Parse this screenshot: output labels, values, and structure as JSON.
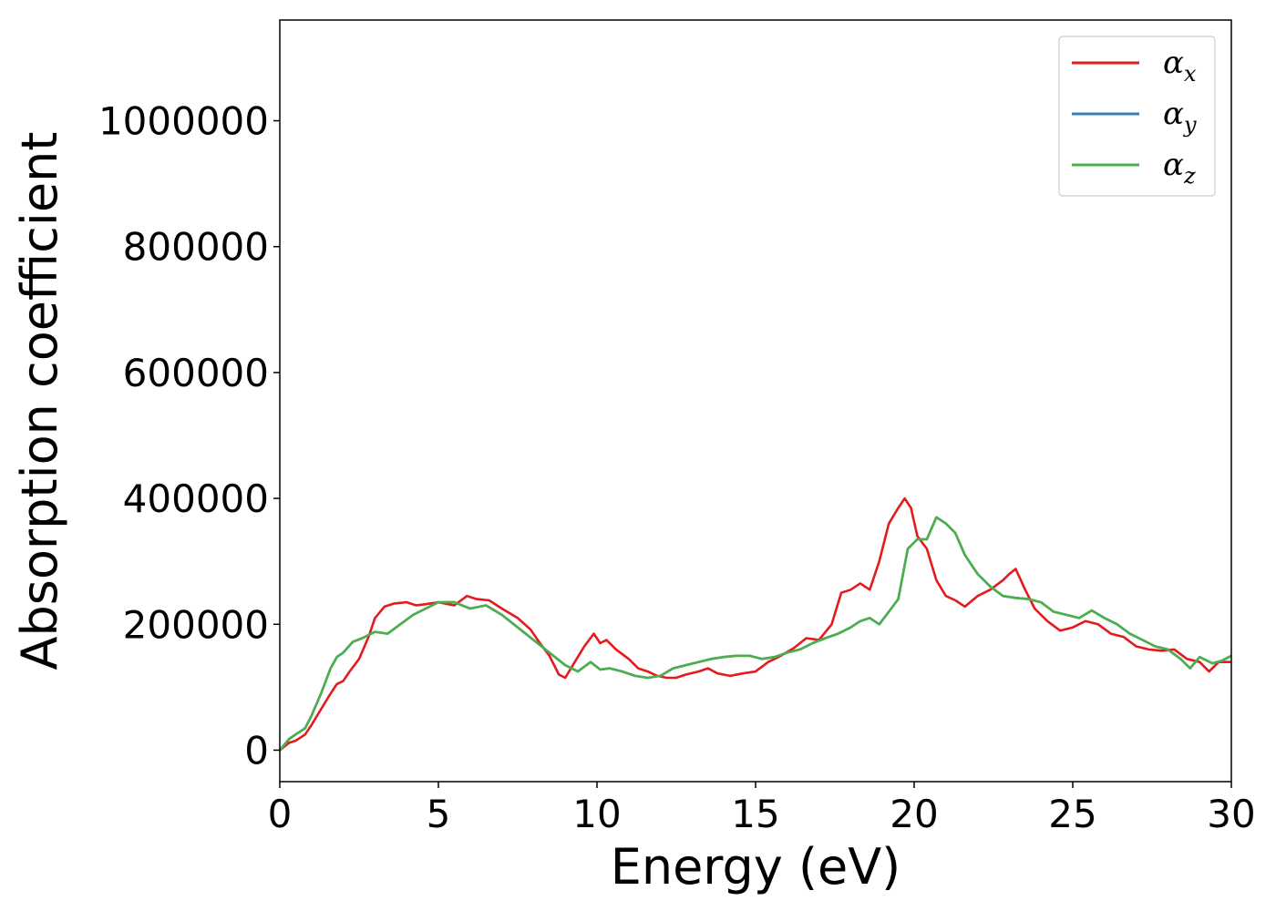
{
  "chart_data": {
    "type": "line",
    "title": "",
    "xlabel": "Energy (eV)",
    "ylabel": "Absorption coefficient",
    "xlim": [
      0,
      30
    ],
    "ylim": [
      -50000,
      1160000
    ],
    "xticks": [
      0,
      5,
      10,
      15,
      20,
      25,
      30
    ],
    "xtick_labels": [
      "0",
      "5",
      "10",
      "15",
      "20",
      "25",
      "30"
    ],
    "yticks": [
      0,
      200000,
      400000,
      600000,
      800000,
      1000000
    ],
    "ytick_labels": [
      "0",
      "200000",
      "400000",
      "600000",
      "800000",
      "1000000"
    ],
    "grid": false,
    "legend_position": "top-right",
    "series": [
      {
        "name": "α",
        "subscript": "x",
        "color": "#e41a1c",
        "x": [
          0,
          0.3,
          0.5,
          0.8,
          1.0,
          1.3,
          1.6,
          1.8,
          2.0,
          2.2,
          2.5,
          2.8,
          3.0,
          3.3,
          3.6,
          4.0,
          4.3,
          4.6,
          5.0,
          5.5,
          5.9,
          6.2,
          6.6,
          7.0,
          7.5,
          7.9,
          8.2,
          8.5,
          8.8,
          9.0,
          9.3,
          9.6,
          9.9,
          10.1,
          10.3,
          10.6,
          11.0,
          11.3,
          11.6,
          11.9,
          12.2,
          12.5,
          12.8,
          13.2,
          13.5,
          13.8,
          14.2,
          14.6,
          15.0,
          15.4,
          15.8,
          16.2,
          16.6,
          17.0,
          17.4,
          17.7,
          18.0,
          18.3,
          18.6,
          18.9,
          19.2,
          19.5,
          19.7,
          19.9,
          20.1,
          20.4,
          20.7,
          21.0,
          21.3,
          21.6,
          22.0,
          22.4,
          22.8,
          23.0,
          23.2,
          23.5,
          23.8,
          24.2,
          24.6,
          25.0,
          25.4,
          25.8,
          26.2,
          26.6,
          27.0,
          27.4,
          27.8,
          28.2,
          28.6,
          29.0,
          29.3,
          29.6,
          30.0
        ],
        "y": [
          0,
          12000,
          15000,
          25000,
          40000,
          65000,
          90000,
          105000,
          110000,
          125000,
          145000,
          180000,
          210000,
          228000,
          233000,
          235000,
          230000,
          232000,
          235000,
          230000,
          245000,
          240000,
          238000,
          225000,
          210000,
          192000,
          170000,
          150000,
          120000,
          115000,
          140000,
          165000,
          185000,
          170000,
          175000,
          160000,
          145000,
          130000,
          125000,
          118000,
          115000,
          115000,
          120000,
          125000,
          130000,
          122000,
          118000,
          122000,
          125000,
          140000,
          150000,
          162000,
          178000,
          175000,
          200000,
          250000,
          255000,
          265000,
          255000,
          300000,
          360000,
          385000,
          400000,
          385000,
          340000,
          320000,
          270000,
          245000,
          238000,
          228000,
          245000,
          255000,
          270000,
          280000,
          288000,
          255000,
          225000,
          205000,
          190000,
          195000,
          205000,
          200000,
          185000,
          180000,
          165000,
          160000,
          158000,
          160000,
          145000,
          140000,
          125000,
          140000,
          140000
        ]
      },
      {
        "name": "α",
        "subscript": "y",
        "color": "#377eb8",
        "x": [
          0,
          0.3,
          0.5,
          0.8,
          1.0,
          1.3,
          1.6,
          1.8,
          2.0,
          2.3,
          2.6,
          3.0,
          3.4,
          3.8,
          4.2,
          4.6,
          5.0,
          5.5,
          6.0,
          6.5,
          7.0,
          7.5,
          8.0,
          8.5,
          9.0,
          9.4,
          9.8,
          10.1,
          10.4,
          10.8,
          11.2,
          11.6,
          12.0,
          12.4,
          12.8,
          13.2,
          13.6,
          14.0,
          14.4,
          14.8,
          15.2,
          15.6,
          16.0,
          16.4,
          16.8,
          17.2,
          17.6,
          18.0,
          18.3,
          18.6,
          18.9,
          19.2,
          19.5,
          19.8,
          20.1,
          20.4,
          20.7,
          21.0,
          21.3,
          21.6,
          22.0,
          22.4,
          22.8,
          23.2,
          23.6,
          24.0,
          24.4,
          24.8,
          25.2,
          25.6,
          26.0,
          26.4,
          26.8,
          27.2,
          27.6,
          28.0,
          28.4,
          28.7,
          29.0,
          29.4,
          29.7,
          30.0
        ],
        "y": [
          0,
          18000,
          25000,
          35000,
          55000,
          90000,
          130000,
          148000,
          155000,
          172000,
          178000,
          188000,
          185000,
          200000,
          215000,
          225000,
          235000,
          235000,
          225000,
          230000,
          215000,
          195000,
          175000,
          155000,
          135000,
          125000,
          140000,
          128000,
          130000,
          125000,
          118000,
          115000,
          118000,
          130000,
          135000,
          140000,
          145000,
          148000,
          150000,
          150000,
          145000,
          148000,
          155000,
          160000,
          170000,
          178000,
          185000,
          195000,
          205000,
          210000,
          200000,
          220000,
          240000,
          320000,
          335000,
          335000,
          370000,
          360000,
          345000,
          310000,
          280000,
          260000,
          245000,
          242000,
          240000,
          235000,
          220000,
          215000,
          210000,
          222000,
          210000,
          200000,
          185000,
          175000,
          165000,
          160000,
          145000,
          130000,
          148000,
          138000,
          142000,
          150000
        ]
      },
      {
        "name": "α",
        "subscript": "z",
        "color": "#4daf4a",
        "x": [
          0,
          0.3,
          0.5,
          0.8,
          1.0,
          1.3,
          1.6,
          1.8,
          2.0,
          2.3,
          2.6,
          3.0,
          3.4,
          3.8,
          4.2,
          4.6,
          5.0,
          5.5,
          6.0,
          6.5,
          7.0,
          7.5,
          8.0,
          8.5,
          9.0,
          9.4,
          9.8,
          10.1,
          10.4,
          10.8,
          11.2,
          11.6,
          12.0,
          12.4,
          12.8,
          13.2,
          13.6,
          14.0,
          14.4,
          14.8,
          15.2,
          15.6,
          16.0,
          16.4,
          16.8,
          17.2,
          17.6,
          18.0,
          18.3,
          18.6,
          18.9,
          19.2,
          19.5,
          19.8,
          20.1,
          20.4,
          20.7,
          21.0,
          21.3,
          21.6,
          22.0,
          22.4,
          22.8,
          23.2,
          23.6,
          24.0,
          24.4,
          24.8,
          25.2,
          25.6,
          26.0,
          26.4,
          26.8,
          27.2,
          27.6,
          28.0,
          28.4,
          28.7,
          29.0,
          29.4,
          29.7,
          30.0
        ],
        "y": [
          0,
          18000,
          25000,
          35000,
          55000,
          90000,
          130000,
          148000,
          155000,
          172000,
          178000,
          188000,
          185000,
          200000,
          215000,
          225000,
          235000,
          235000,
          225000,
          230000,
          215000,
          195000,
          175000,
          155000,
          135000,
          125000,
          140000,
          128000,
          130000,
          125000,
          118000,
          115000,
          118000,
          130000,
          135000,
          140000,
          145000,
          148000,
          150000,
          150000,
          145000,
          148000,
          155000,
          160000,
          170000,
          178000,
          185000,
          195000,
          205000,
          210000,
          200000,
          220000,
          240000,
          320000,
          335000,
          335000,
          370000,
          360000,
          345000,
          310000,
          280000,
          260000,
          245000,
          242000,
          240000,
          235000,
          220000,
          215000,
          210000,
          222000,
          210000,
          200000,
          185000,
          175000,
          165000,
          160000,
          145000,
          130000,
          148000,
          138000,
          142000,
          150000
        ]
      }
    ]
  }
}
